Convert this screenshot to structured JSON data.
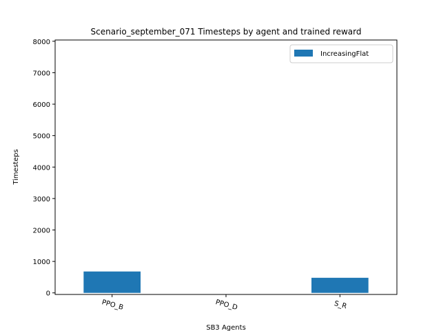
{
  "chart_data": {
    "type": "bar",
    "title": "Scenario_september_071 Timesteps by agent and trained reward",
    "xlabel": "SB3 Agents",
    "ylabel": "Timesteps",
    "categories": [
      "PPO_B",
      "PPO_D",
      "S_R"
    ],
    "series": [
      {
        "name": "IncreasingFlat",
        "values": [
          680,
          0,
          480
        ],
        "color": "#1f77b4"
      }
    ],
    "ylim": [
      0,
      8000
    ],
    "yticks": [
      0,
      1000,
      2000,
      3000,
      4000,
      5000,
      6000,
      7000,
      8000
    ],
    "grid": false,
    "legend_position": "top-right",
    "x_tick_rotation": "slight"
  }
}
